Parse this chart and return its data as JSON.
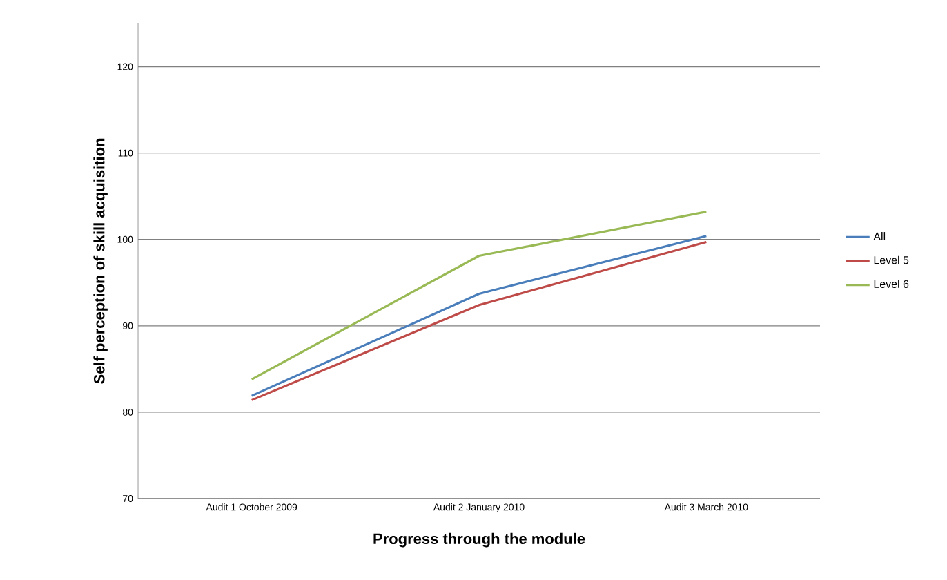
{
  "chart_data": {
    "type": "line",
    "xlabel": "Progress through the module",
    "ylabel": "Self perception of skill acquisition",
    "categories": [
      "Audit 1 October 2009",
      "Audit 2 January 2010",
      "Audit 3 March 2010"
    ],
    "series": [
      {
        "name": "All",
        "color": "#4a7ebb",
        "values": [
          81.9,
          93.7,
          100.4
        ]
      },
      {
        "name": "Level 5",
        "color": "#be4b48",
        "values": [
          81.4,
          92.4,
          99.7
        ]
      },
      {
        "name": "Level 6",
        "color": "#98b954",
        "values": [
          83.8,
          98.1,
          103.2
        ]
      }
    ],
    "ylim": [
      70,
      125
    ],
    "yticks": [
      70,
      80,
      90,
      100,
      110,
      120
    ],
    "grid": "y",
    "legend": "right",
    "marker": "none",
    "line_style": "solid"
  }
}
